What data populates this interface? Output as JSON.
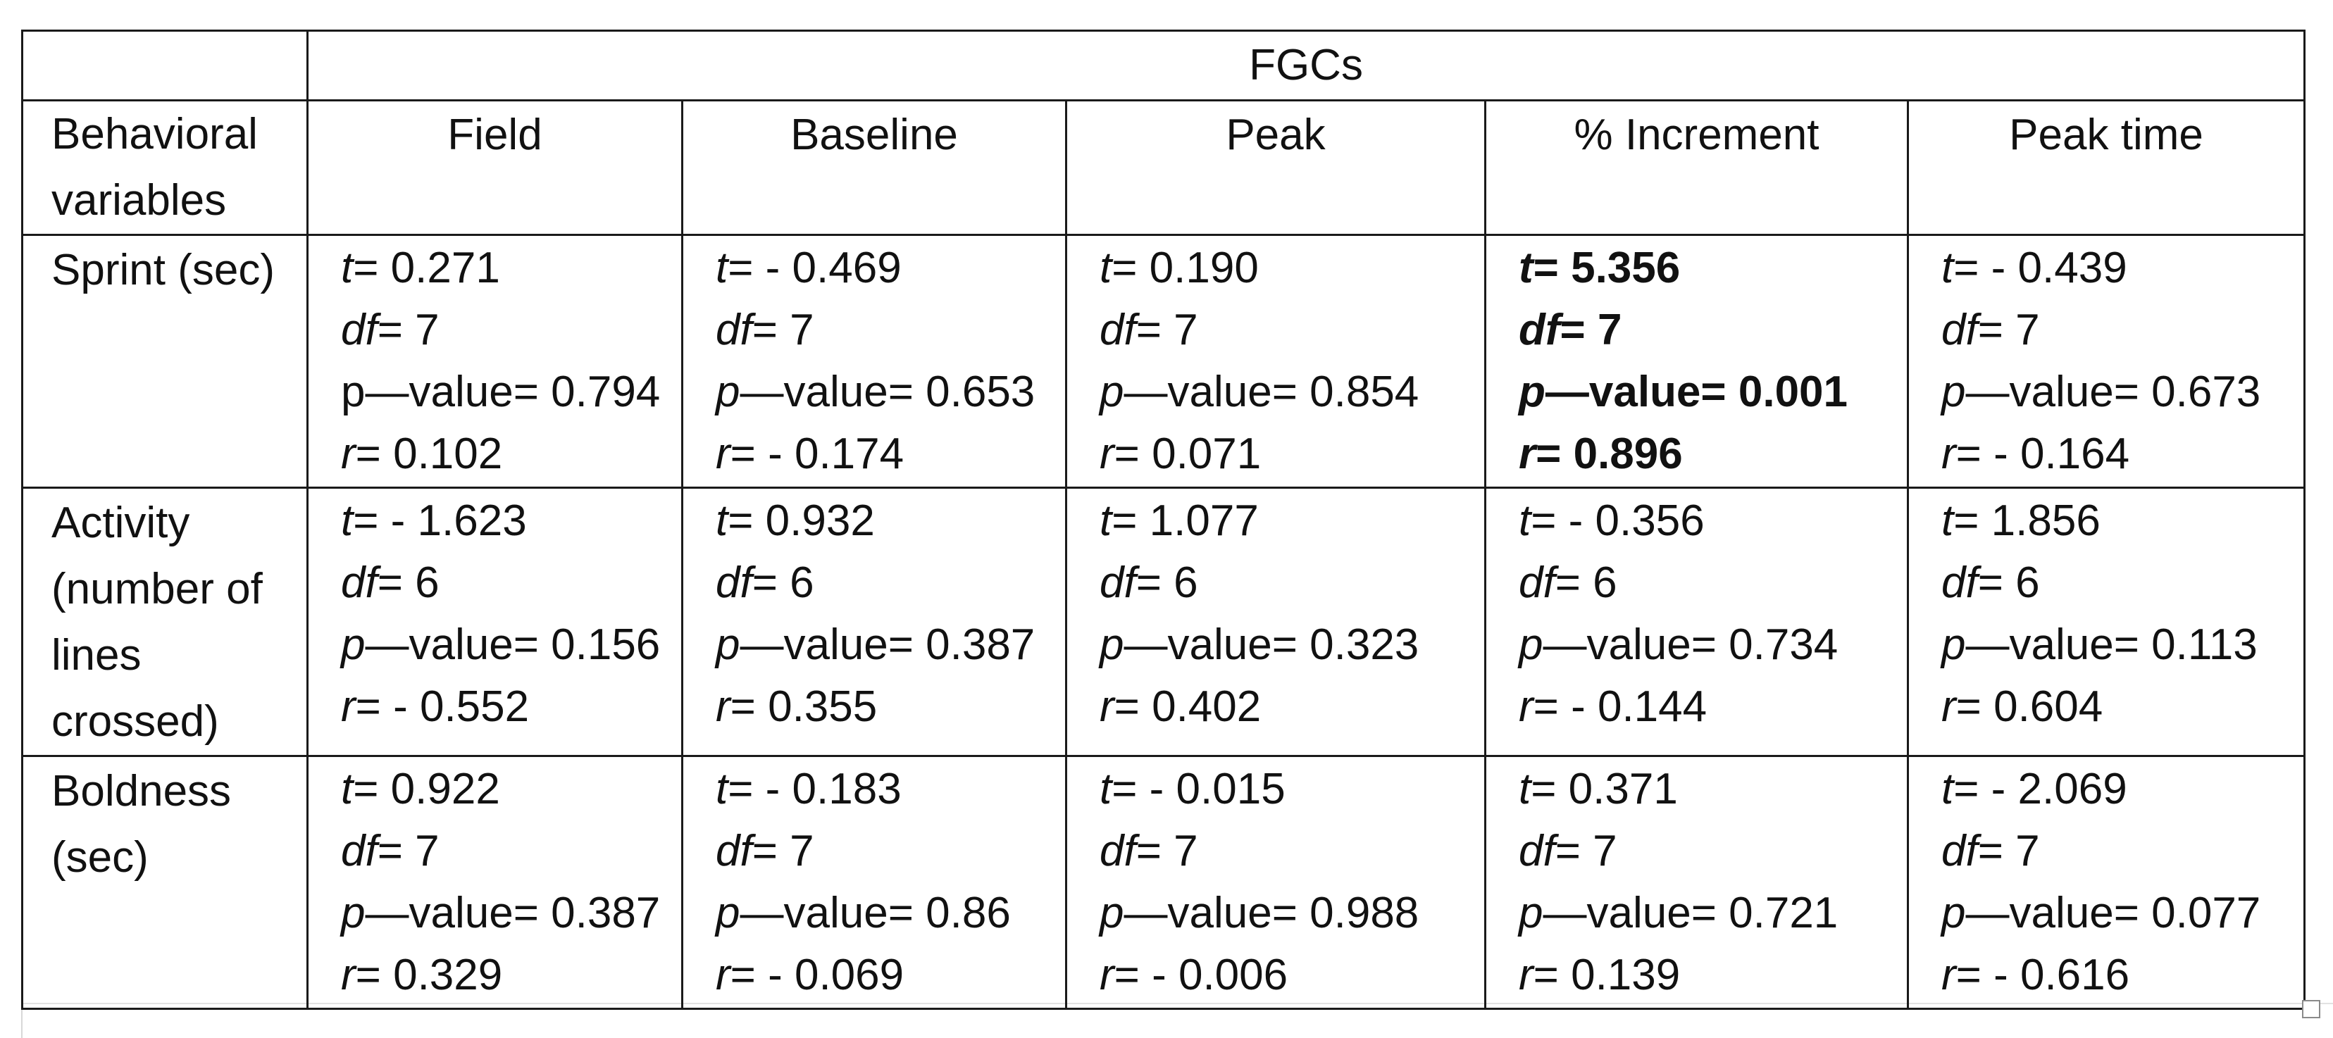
{
  "table": {
    "group_header": "FGCs",
    "row_header_title": "Behavioral variables",
    "columns": [
      "Field",
      "Baseline",
      "Peak",
      "% Increment",
      "Peak time"
    ],
    "rows": [
      {
        "label": "Sprint (sec)",
        "cells": [
          {
            "t": "0.271",
            "df": "7",
            "p": "0.794",
            "r": "0.102",
            "p_italic": false,
            "bold": false
          },
          {
            "t": "- 0.469",
            "df": "7",
            "p": "0.653",
            "r": "- 0.174",
            "p_italic": true,
            "bold": false
          },
          {
            "t": "0.190",
            "df": "7",
            "p": "0.854",
            "r": "0.071",
            "p_italic": true,
            "bold": false
          },
          {
            "t": "5.356",
            "df": "7",
            "p": "0.001",
            "r": "0.896",
            "p_italic": true,
            "bold": true
          },
          {
            "t": "- 0.439",
            "df": "7",
            "p": "0.673",
            "r": "- 0.164",
            "p_italic": true,
            "bold": false
          }
        ]
      },
      {
        "label": "Activity (number of lines crossed)",
        "cells": [
          {
            "t": "- 1.623",
            "df": "6",
            "p": "0.156",
            "r": "- 0.552",
            "p_italic": true,
            "bold": false
          },
          {
            "t": "0.932",
            "df": "6",
            "p": "0.387",
            "r": "0.355",
            "p_italic": true,
            "bold": false
          },
          {
            "t": "1.077",
            "df": "6",
            "p": "0.323",
            "r": "0.402",
            "p_italic": true,
            "bold": false
          },
          {
            "t": "- 0.356",
            "df": "6",
            "p": "0.734",
            "r": "- 0.144",
            "p_italic": true,
            "bold": false
          },
          {
            "t": "1.856",
            "df": "6",
            "p": "0.113",
            "r": "0.604",
            "p_italic": true,
            "bold": false
          }
        ]
      },
      {
        "label": "Boldness (sec)",
        "cells": [
          {
            "t": "0.922",
            "df": "7",
            "p": "0.387",
            "r": "0.329",
            "p_italic": true,
            "bold": false
          },
          {
            "t": "- 0.183",
            "df": "7",
            "p": "0.86",
            "r": "- 0.069",
            "p_italic": true,
            "bold": false
          },
          {
            "t": "- 0.015",
            "df": "7",
            "p": "0.988",
            "r": "- 0.006",
            "p_italic": true,
            "bold": false
          },
          {
            "t": "0.371",
            "df": "7",
            "p": "0.721",
            "r": "0.139",
            "p_italic": true,
            "bold": false
          },
          {
            "t": "- 2.069",
            "df": "7",
            "p": "0.077",
            "r": "- 0.616",
            "p_italic": true,
            "bold": false
          }
        ]
      }
    ]
  },
  "stat_labels": {
    "t": "t",
    "df": "df",
    "p_prefix": "p",
    "p_suffix": "—value",
    "r": "r",
    "eq": "= "
  }
}
